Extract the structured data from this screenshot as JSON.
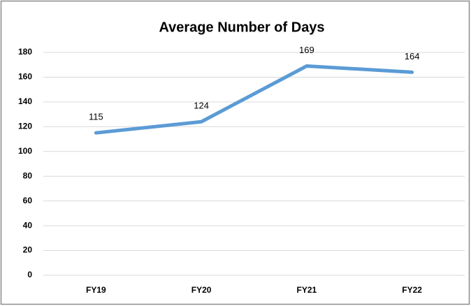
{
  "chart_data": {
    "type": "line",
    "title": "Average Number of Days",
    "categories": [
      "FY19",
      "FY20",
      "FY21",
      "FY22"
    ],
    "series": [
      {
        "name": "Average Number of Days",
        "color": "#5b9bd5",
        "values": [
          115,
          124,
          169,
          164
        ]
      }
    ],
    "ylim": [
      0,
      180
    ],
    "yticks": [
      0,
      20,
      40,
      60,
      80,
      100,
      120,
      140,
      160,
      180
    ],
    "grid": true
  }
}
